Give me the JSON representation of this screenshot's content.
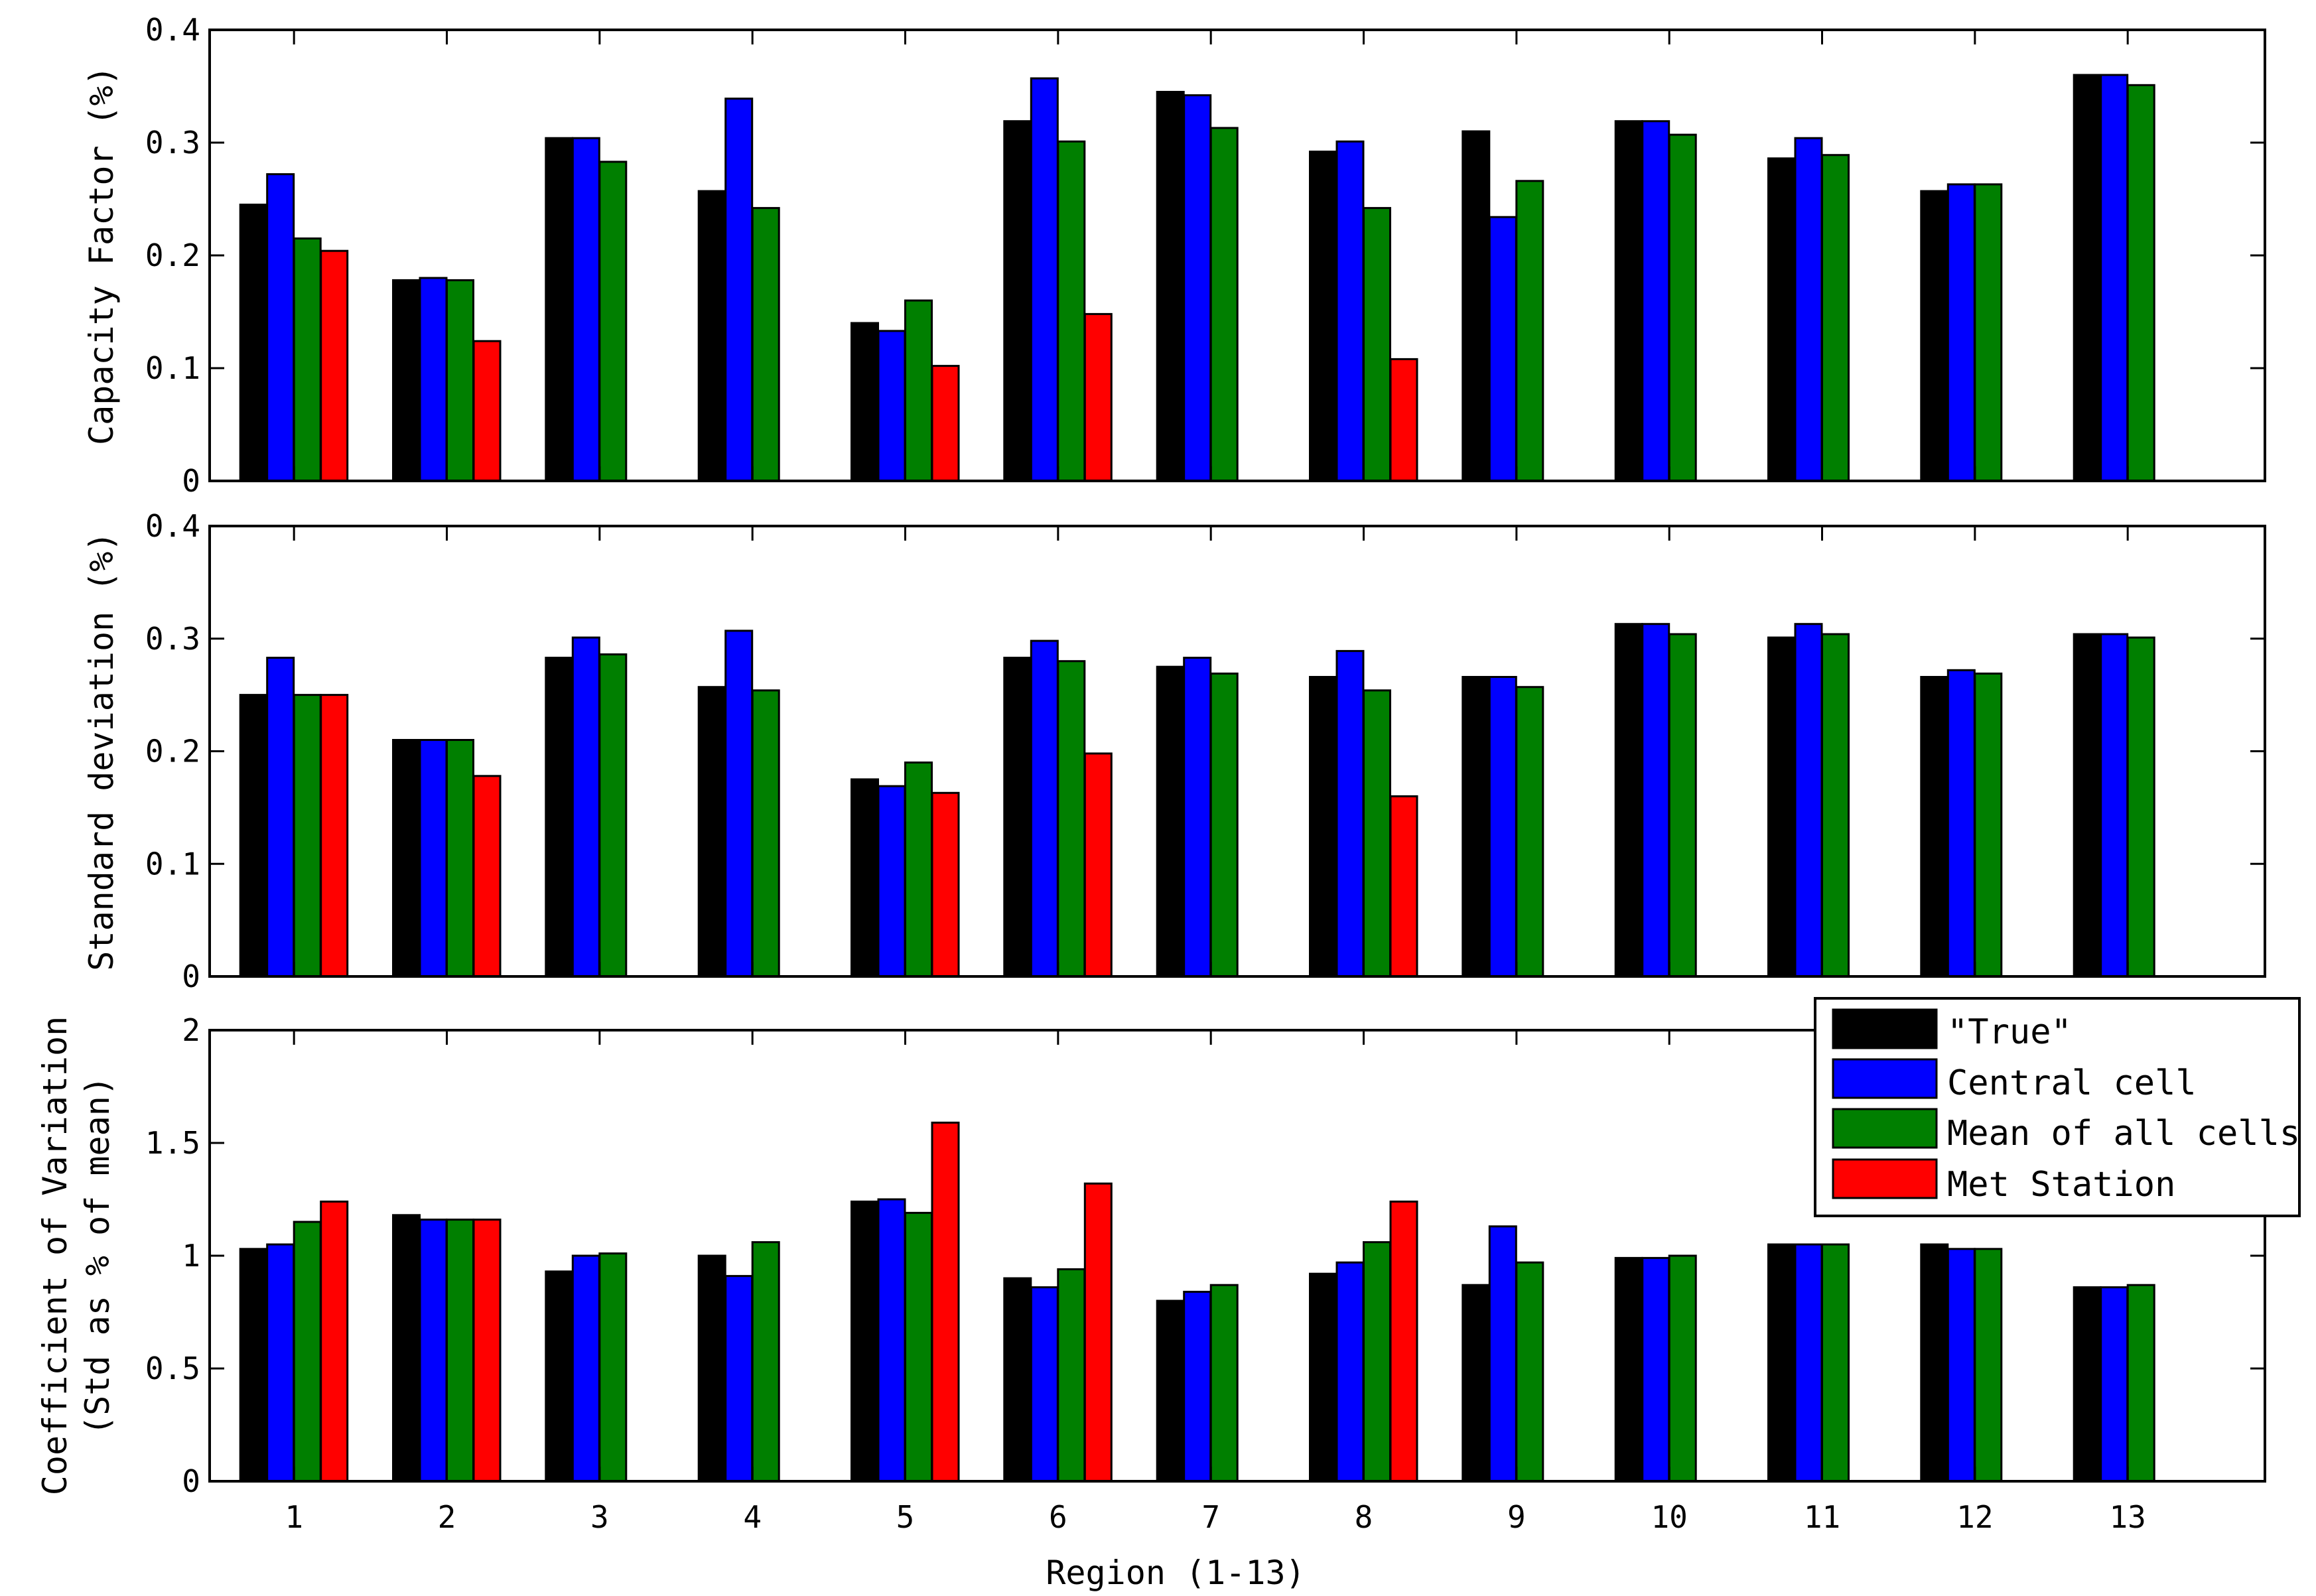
{
  "chart_data": [
    {
      "type": "bar",
      "ylabel": "Capacity Factor (%)",
      "xlabel": "",
      "ylim": [
        0,
        0.4
      ],
      "yticks": [
        "0",
        "0.1",
        "0.2",
        "0.3",
        "0.4"
      ],
      "categories": [
        "1",
        "2",
        "3",
        "4",
        "5",
        "6",
        "7",
        "8",
        "9",
        "10",
        "11",
        "12",
        "13"
      ],
      "series": [
        {
          "name": "\"True\"",
          "values": [
            0.245,
            0.178,
            0.304,
            0.257,
            0.14,
            0.319,
            0.345,
            0.292,
            0.31,
            0.319,
            0.286,
            0.257,
            0.36
          ]
        },
        {
          "name": "Central cell",
          "values": [
            0.272,
            0.18,
            0.304,
            0.339,
            0.133,
            0.357,
            0.342,
            0.301,
            0.234,
            0.319,
            0.304,
            0.263,
            0.36
          ]
        },
        {
          "name": "Mean of all cells",
          "values": [
            0.215,
            0.178,
            0.283,
            0.242,
            0.16,
            0.301,
            0.313,
            0.242,
            0.266,
            0.307,
            0.289,
            0.263,
            0.351
          ]
        },
        {
          "name": "Met Station",
          "values": [
            0.204,
            0.124,
            null,
            null,
            0.102,
            0.148,
            null,
            0.108,
            null,
            null,
            null,
            null,
            null
          ]
        }
      ]
    },
    {
      "type": "bar",
      "ylabel": "Standard deviation (%)",
      "xlabel": "",
      "ylim": [
        0,
        0.4
      ],
      "yticks": [
        "0",
        "0.1",
        "0.2",
        "0.3",
        "0.4"
      ],
      "categories": [
        "1",
        "2",
        "3",
        "4",
        "5",
        "6",
        "7",
        "8",
        "9",
        "10",
        "11",
        "12",
        "13"
      ],
      "series": [
        {
          "name": "\"True\"",
          "values": [
            0.25,
            0.21,
            0.283,
            0.257,
            0.175,
            0.283,
            0.275,
            0.266,
            0.266,
            0.313,
            0.301,
            0.266,
            0.304
          ]
        },
        {
          "name": "Central cell",
          "values": [
            0.283,
            0.21,
            0.301,
            0.307,
            0.169,
            0.298,
            0.283,
            0.289,
            0.266,
            0.313,
            0.313,
            0.272,
            0.304
          ]
        },
        {
          "name": "Mean of all cells",
          "values": [
            0.25,
            0.21,
            0.286,
            0.254,
            0.19,
            0.28,
            0.269,
            0.254,
            0.257,
            0.304,
            0.304,
            0.269,
            0.301
          ]
        },
        {
          "name": "Met Station",
          "values": [
            0.25,
            0.178,
            null,
            null,
            0.163,
            0.198,
            null,
            0.16,
            null,
            null,
            null,
            null,
            null
          ]
        }
      ]
    },
    {
      "type": "bar",
      "ylabel": [
        "Coefficient of Variation",
        "(Std as % of mean)"
      ],
      "xlabel": "Region (1-13)",
      "ylim": [
        0,
        2
      ],
      "yticks": [
        "0",
        "0.5",
        "1",
        "1.5",
        "2"
      ],
      "categories": [
        "1",
        "2",
        "3",
        "4",
        "5",
        "6",
        "7",
        "8",
        "9",
        "10",
        "11",
        "12",
        "13"
      ],
      "series": [
        {
          "name": "\"True\"",
          "values": [
            1.03,
            1.18,
            0.93,
            1.0,
            1.24,
            0.9,
            0.8,
            0.92,
            0.87,
            0.99,
            1.05,
            1.05,
            0.86
          ]
        },
        {
          "name": "Central cell",
          "values": [
            1.05,
            1.16,
            1.0,
            0.91,
            1.25,
            0.86,
            0.84,
            0.97,
            1.13,
            0.99,
            1.05,
            1.03,
            0.86
          ]
        },
        {
          "name": "Mean of all cells",
          "values": [
            1.15,
            1.16,
            1.01,
            1.06,
            1.19,
            0.94,
            0.87,
            1.06,
            0.97,
            1.0,
            1.05,
            1.03,
            0.87
          ]
        },
        {
          "name": "Met Station",
          "values": [
            1.24,
            1.16,
            null,
            null,
            1.59,
            1.32,
            null,
            1.24,
            null,
            null,
            null,
            null,
            null
          ]
        }
      ]
    }
  ],
  "legend": {
    "placement": "top-right of bottom panel",
    "items": [
      {
        "label": "\"True\"",
        "color": "#000000"
      },
      {
        "label": "Central cell",
        "color": "#0000ff"
      },
      {
        "label": "Mean of all cells",
        "color": "#007f00"
      },
      {
        "label": "Met Station",
        "color": "#ff0000"
      }
    ]
  },
  "colors": [
    "#000000",
    "#0000ff",
    "#007f00",
    "#ff0000"
  ]
}
